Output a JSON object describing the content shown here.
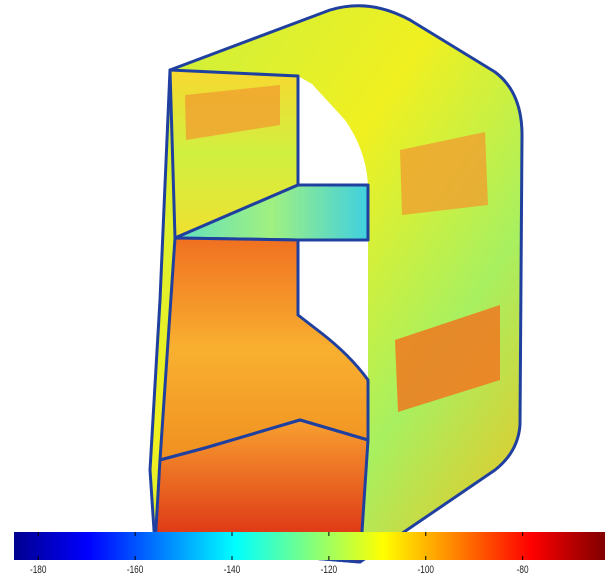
{
  "chart_data": {
    "type": "colorbar",
    "colormap": "jet",
    "xlim": [
      -185,
      -63
    ],
    "xticks": [
      -180,
      -160,
      -140,
      -120,
      -100,
      -80
    ]
  }
}
